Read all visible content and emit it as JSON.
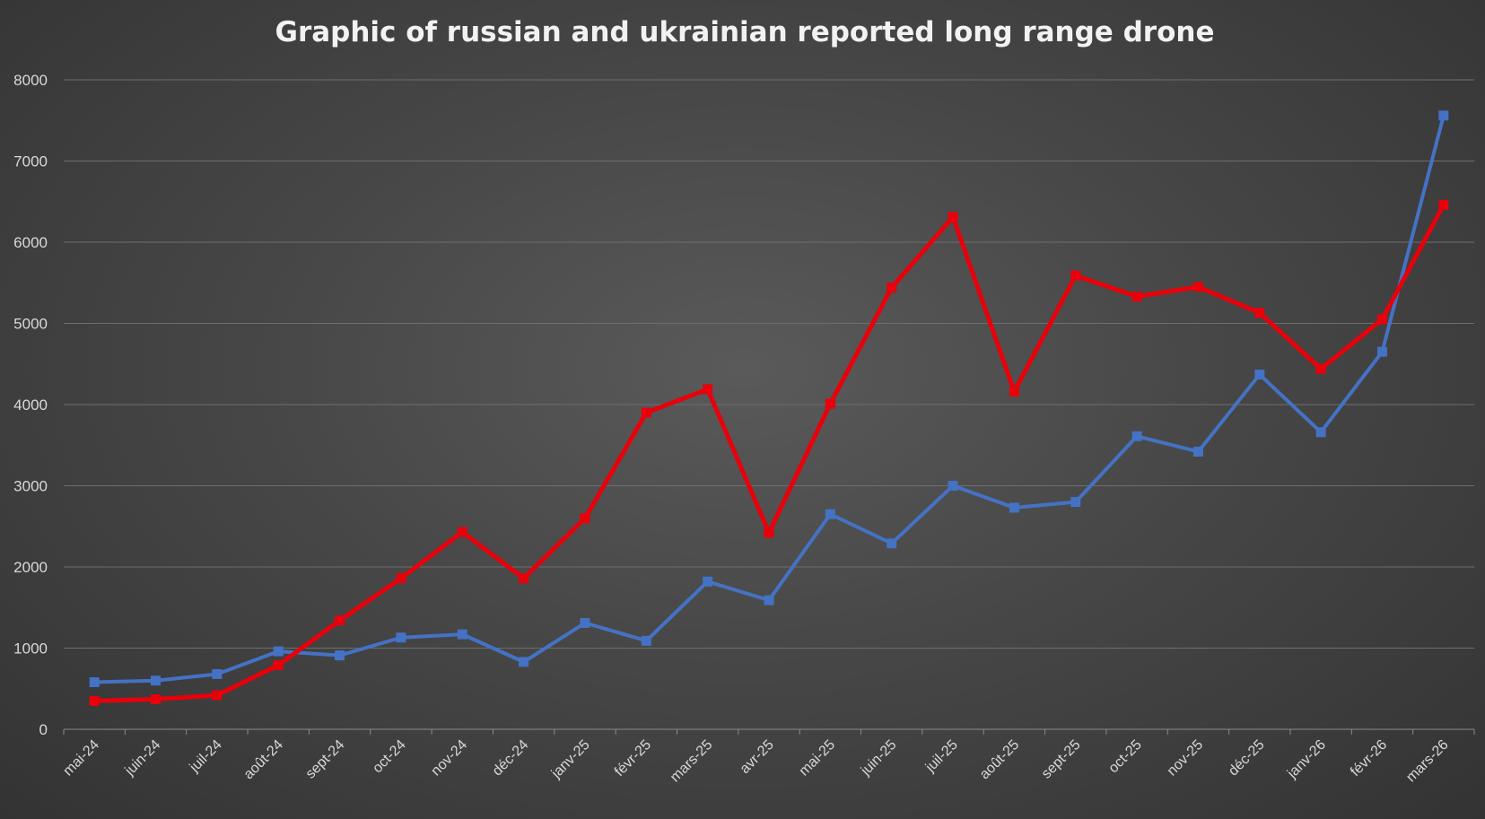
{
  "chart_data": {
    "type": "line",
    "title": "Graphic of russian and ukrainian reported long range drone",
    "xlabel": "",
    "ylabel": "",
    "ylim": [
      0,
      8000
    ],
    "yticks": [
      0,
      1000,
      2000,
      3000,
      4000,
      5000,
      6000,
      7000,
      8000
    ],
    "grid": true,
    "legend": "none",
    "categories": [
      "mai-24",
      "juin-24",
      "juil-24",
      "août-24",
      "sept-24",
      "oct-24",
      "nov-24",
      "déc-24",
      "janv-25",
      "févr-25",
      "mars-25",
      "avr-25",
      "mai-25",
      "juin-25",
      "juil-25",
      "août-25",
      "sept-25",
      "oct-25",
      "nov-25",
      "déc-25",
      "janv-26",
      "févr-26",
      "mars-26"
    ],
    "series": [
      {
        "color": "#4472c4",
        "values": [
          580,
          600,
          680,
          960,
          910,
          1130,
          1170,
          830,
          1310,
          1090,
          1820,
          1590,
          2650,
          2290,
          3000,
          2730,
          2800,
          3610,
          3420,
          4370,
          3660,
          4650,
          7560
        ]
      },
      {
        "color": "#e8000b",
        "values": [
          350,
          370,
          420,
          790,
          1340,
          1860,
          2430,
          1860,
          2600,
          3900,
          4190,
          2420,
          4010,
          5440,
          6310,
          4160,
          5590,
          5330,
          5450,
          5130,
          4440,
          5050,
          6460
        ]
      }
    ]
  }
}
